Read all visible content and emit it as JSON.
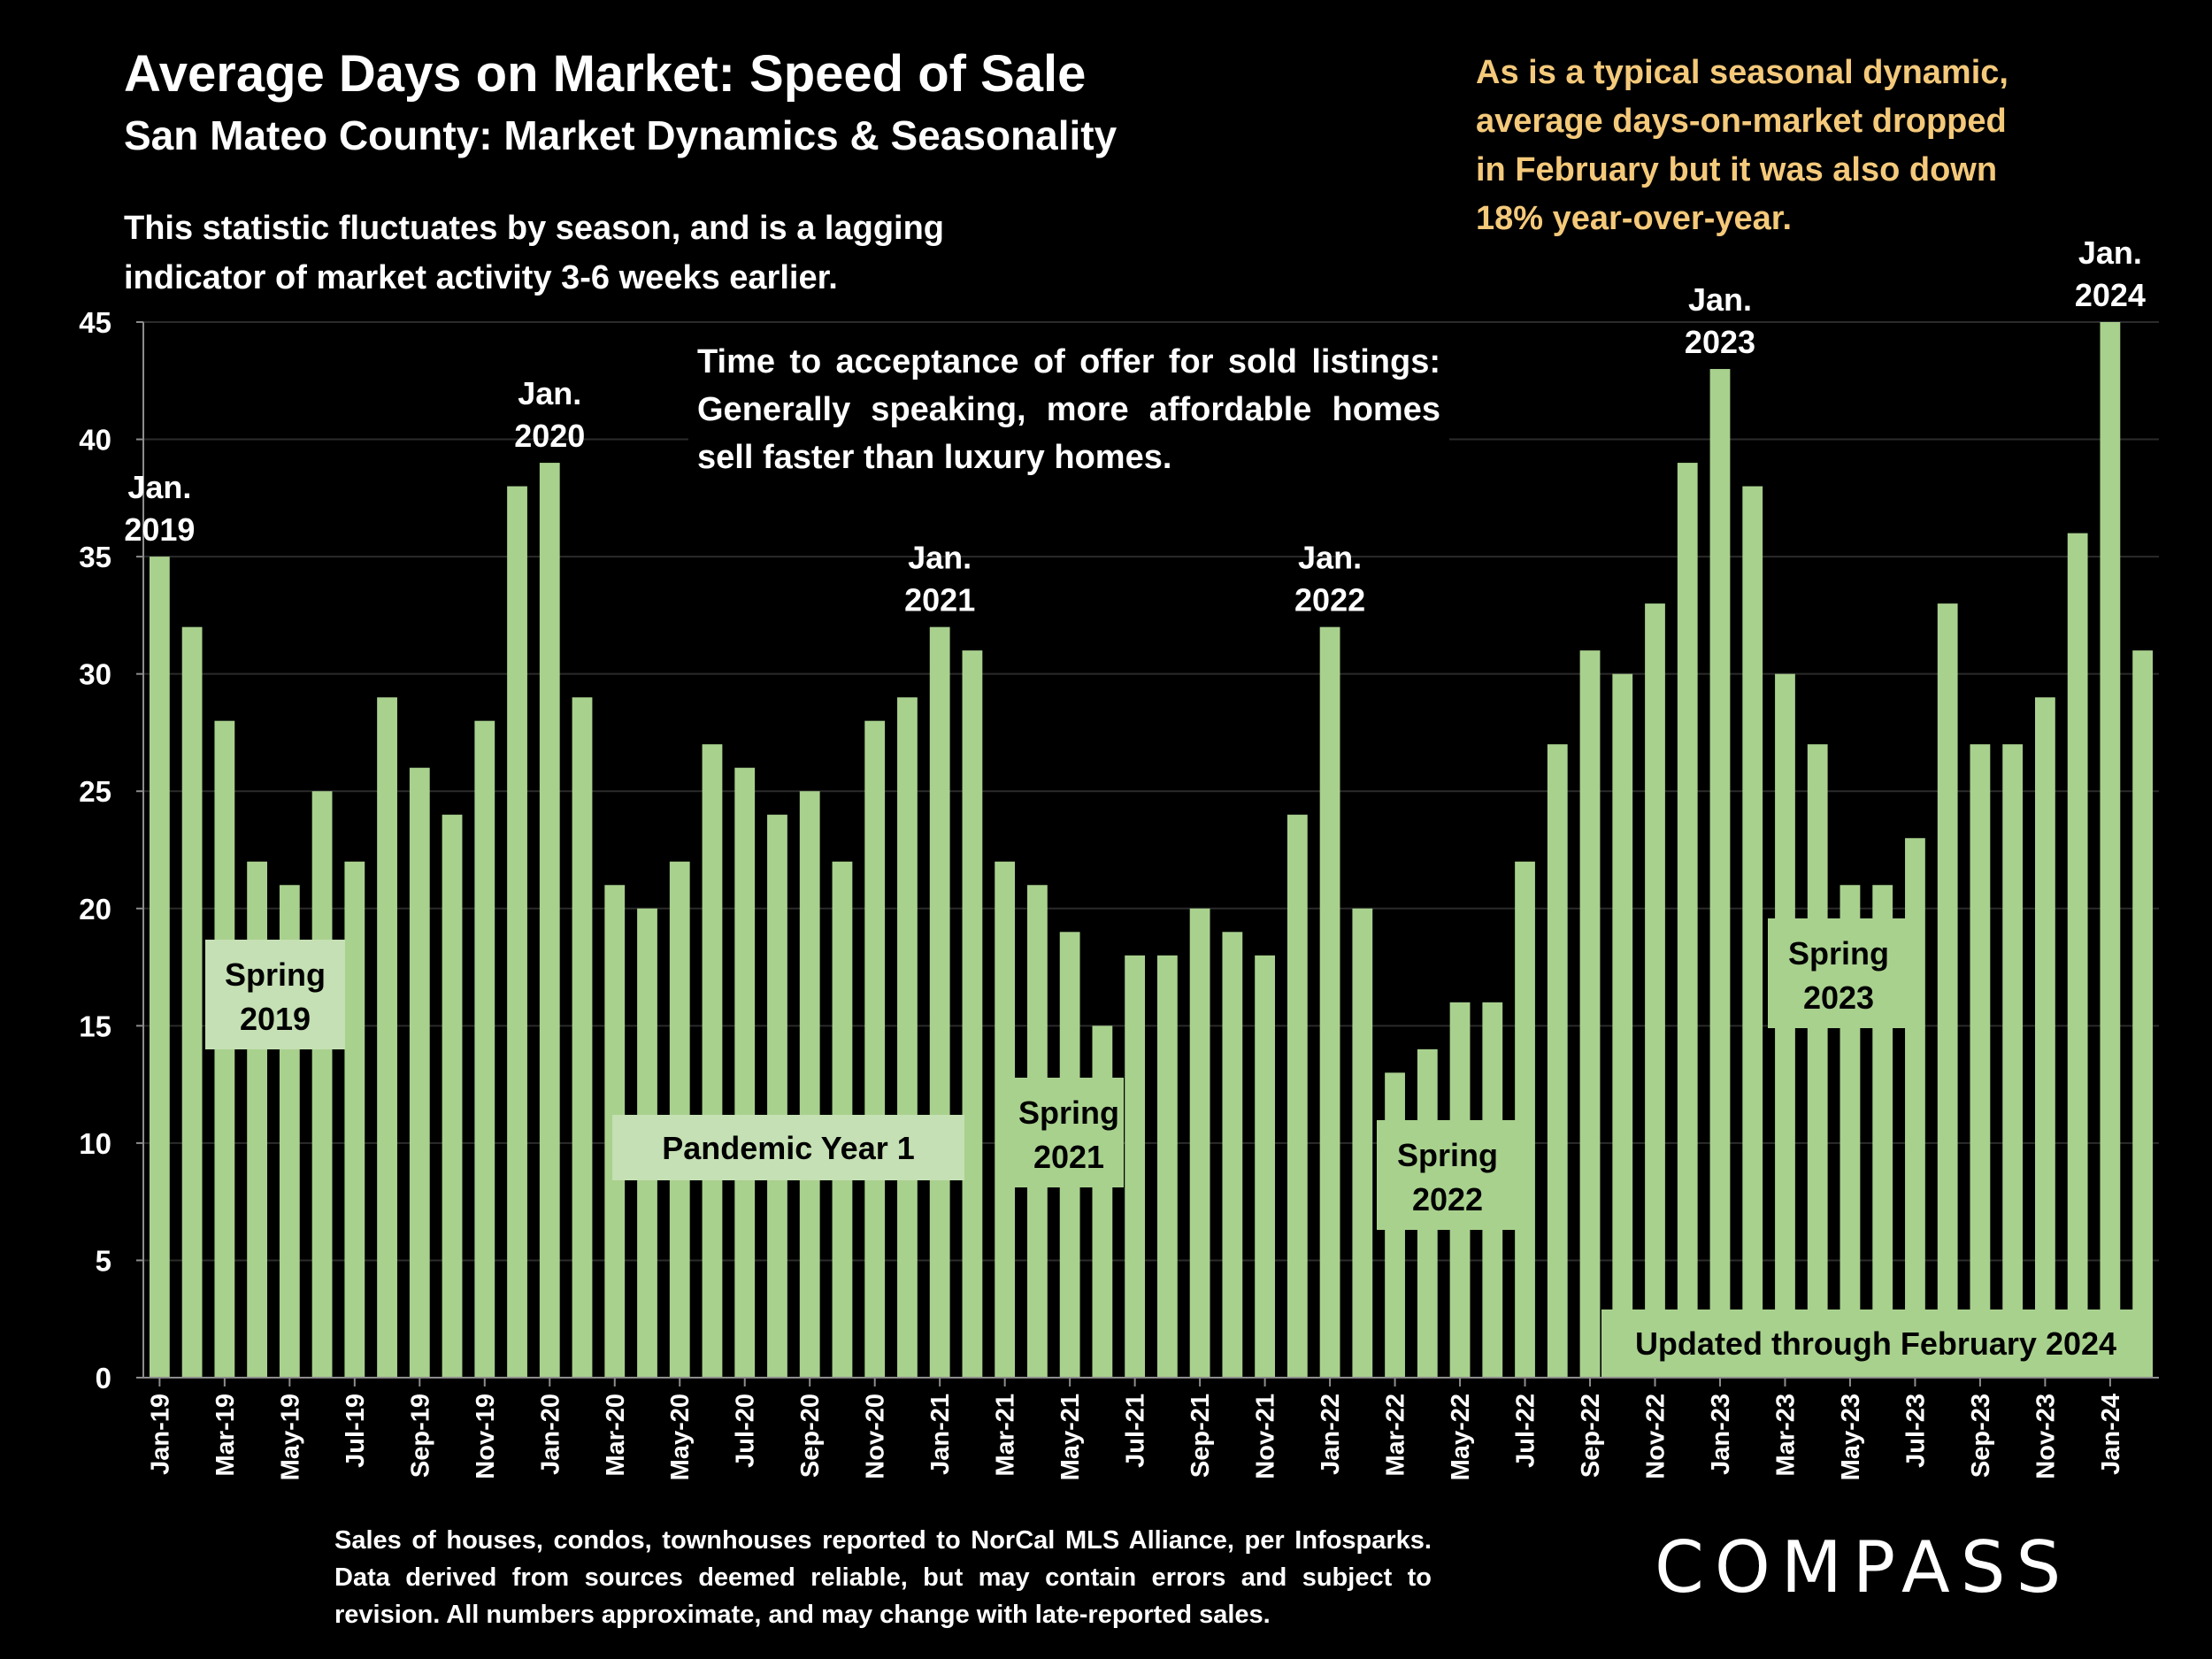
{
  "header": {
    "title": "Average Days on Market:  Speed of Sale",
    "subtitle": "San Mateo County: Market Dynamics & Seasonality",
    "description": "This statistic fluctuates by season, and is a lagging indicator of market activity 3-6 weeks earlier.",
    "callout": "As is a typical seasonal dynamic, average days-on-market dropped in February but it was also down 18% year-over-year.",
    "inset_note": "Time to acceptance of offer for sold listings: Generally speaking, more affordable homes sell faster than luxury homes."
  },
  "footer": {
    "source_note": "Sales of houses, condos, townhouses reported to NorCal MLS Alliance, per Infosparks. Data derived from sources deemed reliable, but may contain errors and subject to revision. All numbers approximate, and may change with late-reported sales.",
    "logo": "COMPASS"
  },
  "colors": {
    "background": "#000000",
    "bar": "#a9d18e",
    "label_box": "#c5e0b4",
    "callout_text": "#f4c97a",
    "text": "#ffffff"
  },
  "chart_data": {
    "type": "bar",
    "title": "Average Days on Market:  Speed of Sale",
    "ylim": [
      0,
      45
    ],
    "yticks": [
      0,
      5,
      10,
      15,
      20,
      25,
      30,
      35,
      40,
      45
    ],
    "grid": true,
    "categories": [
      "Jan-19",
      "Feb-19",
      "Mar-19",
      "Apr-19",
      "May-19",
      "Jun-19",
      "Jul-19",
      "Aug-19",
      "Sep-19",
      "Oct-19",
      "Nov-19",
      "Dec-19",
      "Jan-20",
      "Feb-20",
      "Mar-20",
      "Apr-20",
      "May-20",
      "Jun-20",
      "Jul-20",
      "Aug-20",
      "Sep-20",
      "Oct-20",
      "Nov-20",
      "Dec-20",
      "Jan-21",
      "Feb-21",
      "Mar-21",
      "Apr-21",
      "May-21",
      "Jun-21",
      "Jul-21",
      "Aug-21",
      "Sep-21",
      "Oct-21",
      "Nov-21",
      "Dec-21",
      "Jan-22",
      "Feb-22",
      "Mar-22",
      "Apr-22",
      "May-22",
      "Jun-22",
      "Jul-22",
      "Aug-22",
      "Sep-22",
      "Oct-22",
      "Nov-22",
      "Dec-22",
      "Jan-23",
      "Feb-23",
      "Mar-23",
      "Apr-23",
      "May-23",
      "Jun-23",
      "Jul-23",
      "Aug-23",
      "Sep-23",
      "Oct-23",
      "Nov-23",
      "Dec-23",
      "Jan-24",
      "Feb-24"
    ],
    "tick_labels": [
      "Jan-19",
      "Mar-19",
      "May-19",
      "Jul-19",
      "Sep-19",
      "Nov-19",
      "Jan-20",
      "Mar-20",
      "May-20",
      "Jul-20",
      "Sep-20",
      "Nov-20",
      "Jan-21",
      "Mar-21",
      "May-21",
      "Jul-21",
      "Sep-21",
      "Nov-21",
      "Jan-22",
      "Mar-22",
      "May-22",
      "Jul-22",
      "Sep-22",
      "Nov-22",
      "Jan-23",
      "Mar-23",
      "May-23",
      "Jul-23",
      "Sep-23",
      "Nov-23",
      "Jan-24"
    ],
    "values": [
      35,
      32,
      28,
      22,
      21,
      25,
      22,
      29,
      26,
      24,
      28,
      38,
      39,
      29,
      21,
      20,
      22,
      27,
      26,
      24,
      25,
      22,
      28,
      29,
      32,
      31,
      22,
      21,
      19,
      15,
      18,
      18,
      20,
      19,
      18,
      24,
      32,
      20,
      13,
      14,
      16,
      16,
      22,
      27,
      31,
      30,
      33,
      39,
      43,
      38,
      30,
      27,
      21,
      21,
      23,
      33,
      27,
      27,
      29,
      36,
      45,
      31
    ],
    "peak_labels": [
      {
        "category": "Jan-19",
        "line1": "Jan.",
        "line2": "2019"
      },
      {
        "category": "Jan-20",
        "line1": "Jan.",
        "line2": "2020"
      },
      {
        "category": "Jan-21",
        "line1": "Jan.",
        "line2": "2021"
      },
      {
        "category": "Jan-22",
        "line1": "Jan.",
        "line2": "2022"
      },
      {
        "category": "Jan-23",
        "line1": "Jan.",
        "line2": "2023"
      },
      {
        "category": "Jan-24",
        "line1": "Jan.",
        "line2": "2024"
      }
    ],
    "box_labels": [
      {
        "name": "spring-2019-label",
        "line1": "Spring",
        "line2": "2019",
        "fill": "#c5e0b4"
      },
      {
        "name": "pandemic-year-1-label",
        "line1": "Pandemic Year 1",
        "line2": "",
        "fill": "#c5e0b4"
      },
      {
        "name": "spring-2021-label",
        "line1": "Spring",
        "line2": "2021",
        "fill": "#a9d18e"
      },
      {
        "name": "spring-2022-label",
        "line1": "Spring",
        "line2": "2022",
        "fill": "#a9d18e"
      },
      {
        "name": "spring-2023-label",
        "line1": "Spring",
        "line2": "2023",
        "fill": "#a9d18e"
      },
      {
        "name": "updated-through-label",
        "line1": "Updated through February 2024",
        "line2": "",
        "fill": "#a9d18e"
      }
    ]
  }
}
